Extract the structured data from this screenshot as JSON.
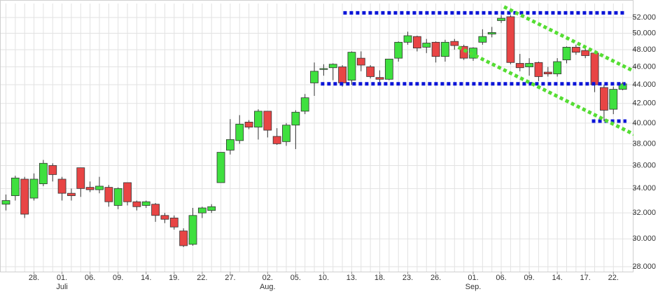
{
  "chart_data": {
    "type": "candlestick",
    "categories": [
      null,
      null,
      null,
      "28.",
      null,
      null,
      "01.",
      null,
      null,
      "06.",
      null,
      null,
      "09.",
      null,
      null,
      "14.",
      null,
      null,
      "19.",
      null,
      null,
      "22.",
      null,
      null,
      "27.",
      null,
      null,
      null,
      "02.",
      null,
      null,
      "05.",
      null,
      null,
      "10.",
      null,
      null,
      "13.",
      null,
      null,
      "18.",
      null,
      null,
      "23.",
      null,
      null,
      "26.",
      null,
      null,
      null,
      "01.",
      null,
      null,
      "06.",
      null,
      null,
      "09.",
      null,
      null,
      "14.",
      null,
      null,
      "17.",
      null,
      null,
      "22.",
      null
    ],
    "month_labels": {
      "6": "Juli",
      "28": "Aug.",
      "50": "Sep."
    },
    "open": [
      32.7,
      33.4,
      34.8,
      33.2,
      34.4,
      36.0,
      34.8,
      33.6,
      35.8,
      34.1,
      33.9,
      34.1,
      32.6,
      34.5,
      32.9,
      32.6,
      32.7,
      31.8,
      31.6,
      30.6,
      29.6,
      32.0,
      32.2,
      34.5,
      37.4,
      38.3,
      40.1,
      39.6,
      41.2,
      38.7,
      38.2,
      39.8,
      41.2,
      44.2,
      45.7,
      45.9,
      46.0,
      44.5,
      47.0,
      46.0,
      44.8,
      44.6,
      47.0,
      48.9,
      49.6,
      48.3,
      48.9,
      47.2,
      49.0,
      48.4,
      47.0,
      48.9,
      49.9,
      51.6,
      52.1,
      46.4,
      46.0,
      46.5,
      45.4,
      45.2,
      46.8,
      48.3,
      47.9,
      47.6,
      43.7,
      41.4,
      43.5
    ],
    "high": [
      33.5,
      35.1,
      35.0,
      35.3,
      36.5,
      36.2,
      35.0,
      34.0,
      35.8,
      34.6,
      35.0,
      34.3,
      34.1,
      34.5,
      33.0,
      33.0,
      32.8,
      32.0,
      31.8,
      30.8,
      32.4,
      32.5,
      32.7,
      37.2,
      40.4,
      40.8,
      40.3,
      41.4,
      41.2,
      39.5,
      40.0,
      41.3,
      43.0,
      46.5,
      46.3,
      46.4,
      46.2,
      47.8,
      47.8,
      46.2,
      45.6,
      46.9,
      49.0,
      50.2,
      49.7,
      49.3,
      49.0,
      49.2,
      49.3,
      48.6,
      48.3,
      50.5,
      50.8,
      52.3,
      52.3,
      47.5,
      47.0,
      46.6,
      46.0,
      47.0,
      48.4,
      48.6,
      48.2,
      47.7,
      44.0,
      43.8,
      44.3
    ],
    "low": [
      32.2,
      33.0,
      31.6,
      33.0,
      34.2,
      34.6,
      33.0,
      33.0,
      33.3,
      33.7,
      33.6,
      32.5,
      32.3,
      32.6,
      32.2,
      32.4,
      31.3,
      31.2,
      30.7,
      29.4,
      29.5,
      31.6,
      32.0,
      34.5,
      37.0,
      38.0,
      39.4,
      38.4,
      38.6,
      37.9,
      37.8,
      37.5,
      40.9,
      42.8,
      45.0,
      44.5,
      43.8,
      44.0,
      45.5,
      44.7,
      44.3,
      44.5,
      46.6,
      48.6,
      47.8,
      47.6,
      46.5,
      46.6,
      48.0,
      46.8,
      46.7,
      48.6,
      49.5,
      51.3,
      46.3,
      45.5,
      45.0,
      44.4,
      44.9,
      44.9,
      46.4,
      47.4,
      47.0,
      43.2,
      40.2,
      40.9,
      43.4
    ],
    "close": [
      33.0,
      34.9,
      31.9,
      34.8,
      36.2,
      35.2,
      33.6,
      33.4,
      34.0,
      33.9,
      34.2,
      32.9,
      34.0,
      32.9,
      32.5,
      32.9,
      31.8,
      31.5,
      30.9,
      29.5,
      31.8,
      32.4,
      32.5,
      37.2,
      38.4,
      39.9,
      39.6,
      41.2,
      39.3,
      38.0,
      39.8,
      41.1,
      42.6,
      45.5,
      45.8,
      46.3,
      44.2,
      47.7,
      46.2,
      44.9,
      44.6,
      46.9,
      48.9,
      49.7,
      48.2,
      48.8,
      47.2,
      48.9,
      48.5,
      47.0,
      48.2,
      49.6,
      50.1,
      51.9,
      46.5,
      45.9,
      46.4,
      44.9,
      45.2,
      46.6,
      48.3,
      47.7,
      47.3,
      44.0,
      41.3,
      43.5,
      44.1
    ],
    "up_color": "#3fe03f",
    "down_color": "#e84545",
    "ylim": [
      27.66,
      53.84
    ],
    "log_scale": true,
    "grid": true,
    "yticks": [
      {
        "value": 28,
        "label": "28.000"
      },
      {
        "value": 30,
        "label": "30.000"
      },
      {
        "value": 32,
        "label": "32.000"
      },
      {
        "value": 34,
        "label": "34.000"
      },
      {
        "value": 36,
        "label": "36.000"
      },
      {
        "value": 38,
        "label": "38.000"
      },
      {
        "value": 40,
        "label": "40.000"
      },
      {
        "value": 42,
        "label": "42.000"
      },
      {
        "value": 44,
        "label": "44.000"
      },
      {
        "value": 46,
        "label": "46.000"
      },
      {
        "value": 48,
        "label": "48.000"
      },
      {
        "value": 50,
        "label": "50.000"
      },
      {
        "value": 52,
        "label": "52.000"
      }
    ],
    "annotations": [
      {
        "x": [
          36.1,
          66.4
        ],
        "y": [
          52.6,
          52.6
        ],
        "color": "#0a14d8"
      },
      {
        "x": [
          33.7,
          66.3
        ],
        "y": [
          44.1,
          44.1
        ],
        "color": "#0a14d8"
      },
      {
        "x": [
          62.7,
          66.4
        ],
        "y": [
          40.2,
          40.2
        ],
        "color": "#0a14d8"
      },
      {
        "x": [
          53.3,
          67.2
        ],
        "y": [
          53.4,
          45.5
        ],
        "color": "#55dd33"
      },
      {
        "x": [
          48.4,
          67.2
        ],
        "y": [
          48.3,
          38.9
        ],
        "color": "#55dd33"
      }
    ]
  }
}
